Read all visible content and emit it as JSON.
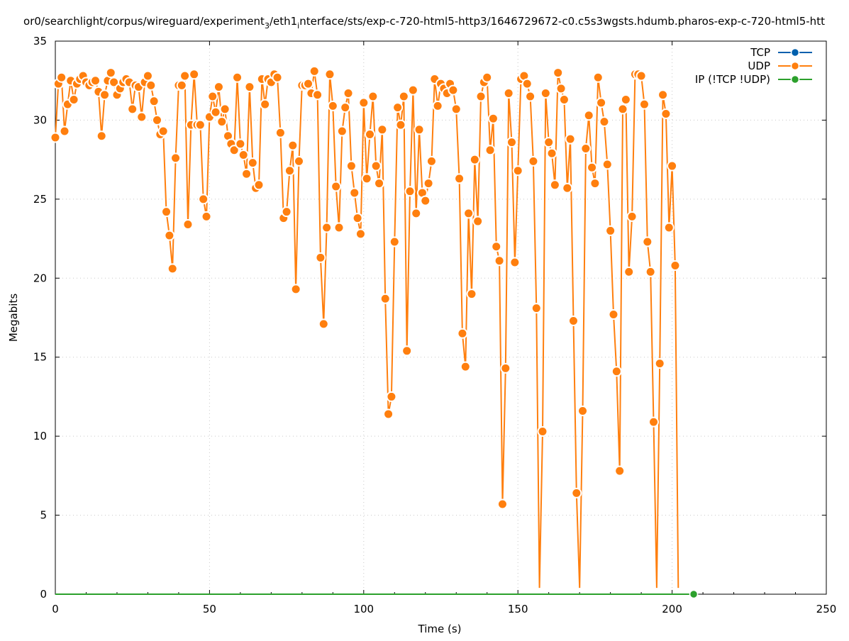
{
  "chart_data": {
    "type": "line",
    "title": "or0/searchlight/corpus/wireguard/experiment",
    "title_sub": "3",
    "title_mid": "/eth1",
    "title_sub2": "i",
    "title_rest": "nterface/sts/exp-c-720-html5-http3/1646729672-c0.c5s3wgsts.hdumb.pharos-exp-c-720-html5-htt",
    "xlabel": "Time (s)",
    "ylabel": "Megabits",
    "xlim": [
      0,
      250
    ],
    "ylim": [
      0,
      35
    ],
    "xticks": [
      0,
      50,
      100,
      150,
      200,
      250
    ],
    "yticks": [
      0,
      5,
      10,
      15,
      20,
      25,
      30,
      35
    ],
    "grid": true,
    "legend_position": "top-right",
    "series": [
      {
        "name": "TCP",
        "color": "#0060ad",
        "x": [],
        "y": []
      },
      {
        "name": "UDP",
        "color": "#ff7f0e",
        "x": [
          0,
          1,
          2,
          3,
          4,
          5,
          6,
          7,
          8,
          9,
          10,
          11,
          12,
          13,
          14,
          15,
          16,
          17,
          18,
          19,
          20,
          21,
          22,
          23,
          24,
          25,
          26,
          27,
          28,
          29,
          30,
          31,
          32,
          33,
          34,
          35,
          36,
          37,
          38,
          39,
          40,
          41,
          42,
          43,
          44,
          45,
          46,
          47,
          48,
          49,
          50,
          51,
          52,
          53,
          54,
          55,
          56,
          57,
          58,
          59,
          60,
          61,
          62,
          63,
          64,
          65,
          66,
          67,
          68,
          69,
          70,
          71,
          72,
          73,
          74,
          75,
          76,
          77,
          78,
          79,
          80,
          81,
          82,
          83,
          84,
          85,
          86,
          87,
          88,
          89,
          90,
          91,
          92,
          93,
          94,
          95,
          96,
          97,
          98,
          99,
          100,
          101,
          102,
          103,
          104,
          105,
          106,
          107,
          108,
          109,
          110,
          111,
          112,
          113,
          114,
          115,
          116,
          117,
          118,
          119,
          120,
          121,
          122,
          123,
          124,
          125,
          126,
          127,
          128,
          129,
          130,
          131,
          132,
          133,
          134,
          135,
          136,
          137,
          138,
          139,
          140,
          141,
          142,
          143,
          144,
          145,
          146,
          147,
          148,
          149,
          150,
          151,
          152,
          153,
          154,
          155,
          156,
          157,
          158,
          159,
          160,
          161,
          162,
          163,
          164,
          165,
          166,
          167,
          168,
          169,
          170,
          171,
          172,
          173,
          174,
          175,
          176,
          177,
          178,
          179,
          180,
          181,
          182,
          183,
          184,
          185,
          186,
          187,
          188,
          189,
          190,
          191,
          192,
          193,
          194,
          195,
          196,
          197,
          198,
          199,
          200,
          201,
          202
        ],
        "y": [
          28.9,
          32.3,
          32.7,
          29.3,
          31.0,
          32.5,
          31.3,
          32.3,
          32.6,
          32.8,
          32.4,
          32.2,
          32.4,
          32.5,
          31.8,
          29.0,
          31.6,
          32.5,
          33.0,
          32.4,
          31.6,
          32.0,
          32.4,
          32.6,
          32.4,
          30.7,
          32.2,
          32.1,
          30.2,
          32.4,
          32.8,
          32.2,
          31.2,
          30.0,
          29.1,
          29.3,
          24.2,
          22.7,
          20.6,
          27.6,
          32.2,
          32.2,
          32.8,
          23.4,
          29.7,
          32.9,
          29.7,
          29.7,
          25.0,
          23.9,
          30.2,
          31.5,
          30.5,
          32.1,
          29.9,
          30.7,
          29.0,
          28.5,
          28.1,
          32.7,
          28.5,
          27.8,
          26.6,
          32.1,
          27.3,
          25.7,
          25.9,
          32.6,
          31.0,
          32.6,
          32.4,
          32.9,
          32.7,
          29.2,
          23.8,
          24.2,
          26.8,
          28.4,
          19.3,
          27.4,
          32.2,
          32.2,
          32.3,
          31.7,
          33.1,
          31.6,
          21.3,
          17.1,
          23.2,
          32.9,
          30.9,
          25.8,
          23.2,
          29.3,
          30.8,
          31.7,
          27.1,
          25.4,
          23.8,
          22.8,
          31.1,
          26.3,
          29.1,
          31.5,
          27.1,
          26.0,
          29.4,
          18.7,
          11.4,
          12.5,
          22.3,
          30.8,
          29.7,
          31.5,
          15.4,
          25.5,
          31.9,
          24.1,
          29.4,
          25.4,
          24.9,
          26.0,
          27.4,
          32.6,
          30.9,
          32.3,
          32.0,
          31.7,
          32.3,
          31.9,
          30.7,
          26.3,
          16.5,
          14.4,
          24.1,
          19.0,
          27.5,
          23.6,
          31.5,
          32.4,
          32.7,
          28.1,
          30.1,
          22.0,
          21.1,
          5.7,
          14.3,
          31.7,
          28.6,
          21.0,
          26.8,
          32.6,
          32.8,
          32.3,
          31.5,
          27.4,
          18.1,
          0.4,
          10.3,
          31.7,
          28.6,
          27.9,
          25.9,
          33.0,
          32.0,
          31.3,
          25.7,
          28.8,
          17.3,
          6.4,
          0.4,
          11.6,
          28.2,
          30.3,
          27.0,
          26.0,
          32.7,
          31.1,
          29.9,
          27.2,
          23.0,
          17.7,
          14.1,
          7.8,
          30.7,
          31.3,
          20.4,
          23.9,
          32.9,
          32.9,
          32.8,
          31.0,
          22.3,
          20.4,
          10.9,
          0.4,
          14.6,
          31.6,
          30.4,
          23.2,
          27.1,
          20.8,
          0.4
        ]
      },
      {
        "name": "IP (!TCP  !UDP)",
        "color": "#2ca02c",
        "x": [
          0,
          202,
          203,
          204,
          205,
          206,
          207
        ],
        "y": [
          0,
          0,
          0,
          0,
          0,
          0,
          0
        ]
      }
    ]
  }
}
